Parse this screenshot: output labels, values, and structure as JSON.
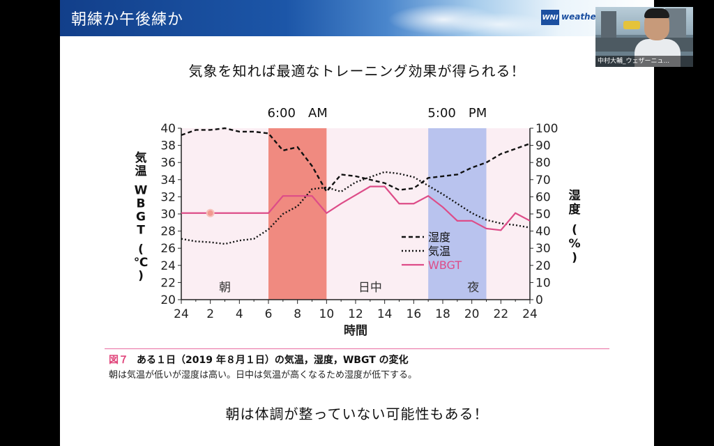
{
  "slide": {
    "title": "朝練か午後練か",
    "logo_mark": "WNI",
    "logo_text": "weatherne",
    "headline": "気象を知れば最適なトレーニング効果が得られる！",
    "caption_label": "図７",
    "caption_title": "ある１日（2019 年８月１日）の気温，湿度，WBGT の変化",
    "caption_body": "朝は気温が低いが湿度は高い。日中は気温が高くなるため湿度が低下する。",
    "footer": "朝は体調が整っていない可能性もある！"
  },
  "video": {
    "participant_name": "中村大輔_ウェザーニュ..."
  },
  "chart_data": {
    "type": "line",
    "top_labels": [
      "6:00　AM",
      "5:00　PM"
    ],
    "period_labels": [
      "朝",
      "日中",
      "夜"
    ],
    "xlabel": "時間",
    "ylabel_left": "気温　WBGT　(℃)",
    "ylabel_right": "湿度　(%)",
    "x_ticks": [
      "24",
      "2",
      "4",
      "6",
      "8",
      "10",
      "12",
      "14",
      "16",
      "18",
      "20",
      "22",
      "24"
    ],
    "y_left_ticks": [
      "40",
      "38",
      "36",
      "34",
      "32",
      "30",
      "28",
      "26",
      "24",
      "22",
      "20"
    ],
    "y_right_ticks": [
      "100",
      "90",
      "80",
      "70",
      "60",
      "50",
      "40",
      "30",
      "20",
      "10",
      "0"
    ],
    "ylim_left": [
      20,
      40
    ],
    "ylim_right": [
      0,
      100
    ],
    "x_range": [
      0,
      24
    ],
    "highlights": [
      {
        "from": 6,
        "to": 10,
        "color": "#f08a80"
      },
      {
        "from": 17,
        "to": 21,
        "color": "#b9c3ee"
      }
    ],
    "background_color": "#fbeef3",
    "x": [
      0,
      1,
      2,
      3,
      4,
      5,
      6,
      7,
      8,
      9,
      10,
      11,
      12,
      13,
      14,
      15,
      16,
      17,
      18,
      19,
      20,
      21,
      22,
      23,
      24
    ],
    "series": [
      {
        "name": "湿度",
        "axis": "right",
        "style": "dashed",
        "color": "#111111",
        "values": [
          96,
          99,
          99,
          100,
          98,
          98,
          97,
          87,
          89,
          78,
          63,
          73,
          72,
          70,
          68,
          64,
          65,
          71,
          72,
          73,
          77,
          80,
          85,
          88,
          91
        ]
      },
      {
        "name": "気温",
        "axis": "left",
        "style": "dotted",
        "color": "#111111",
        "values": [
          27.1,
          26.8,
          26.7,
          26.5,
          26.9,
          27.1,
          28.2,
          30.0,
          30.9,
          32.9,
          33.1,
          32.6,
          33.7,
          34.3,
          34.9,
          34.7,
          34.3,
          33.3,
          32.3,
          31.2,
          30.1,
          29.3,
          28.9,
          28.7,
          28.4
        ]
      },
      {
        "name": "WBGT",
        "axis": "left",
        "style": "solid",
        "color": "#dd4c88",
        "values": [
          30.1,
          30.1,
          30.1,
          30.1,
          30.1,
          30.1,
          30.1,
          32.1,
          32.1,
          32.1,
          30.1,
          31.2,
          32.2,
          33.2,
          33.2,
          31.2,
          31.2,
          32.1,
          30.8,
          29.2,
          29.2,
          28.3,
          28.1,
          30.1,
          29.2
        ]
      }
    ],
    "legend_position": "inside-right"
  }
}
